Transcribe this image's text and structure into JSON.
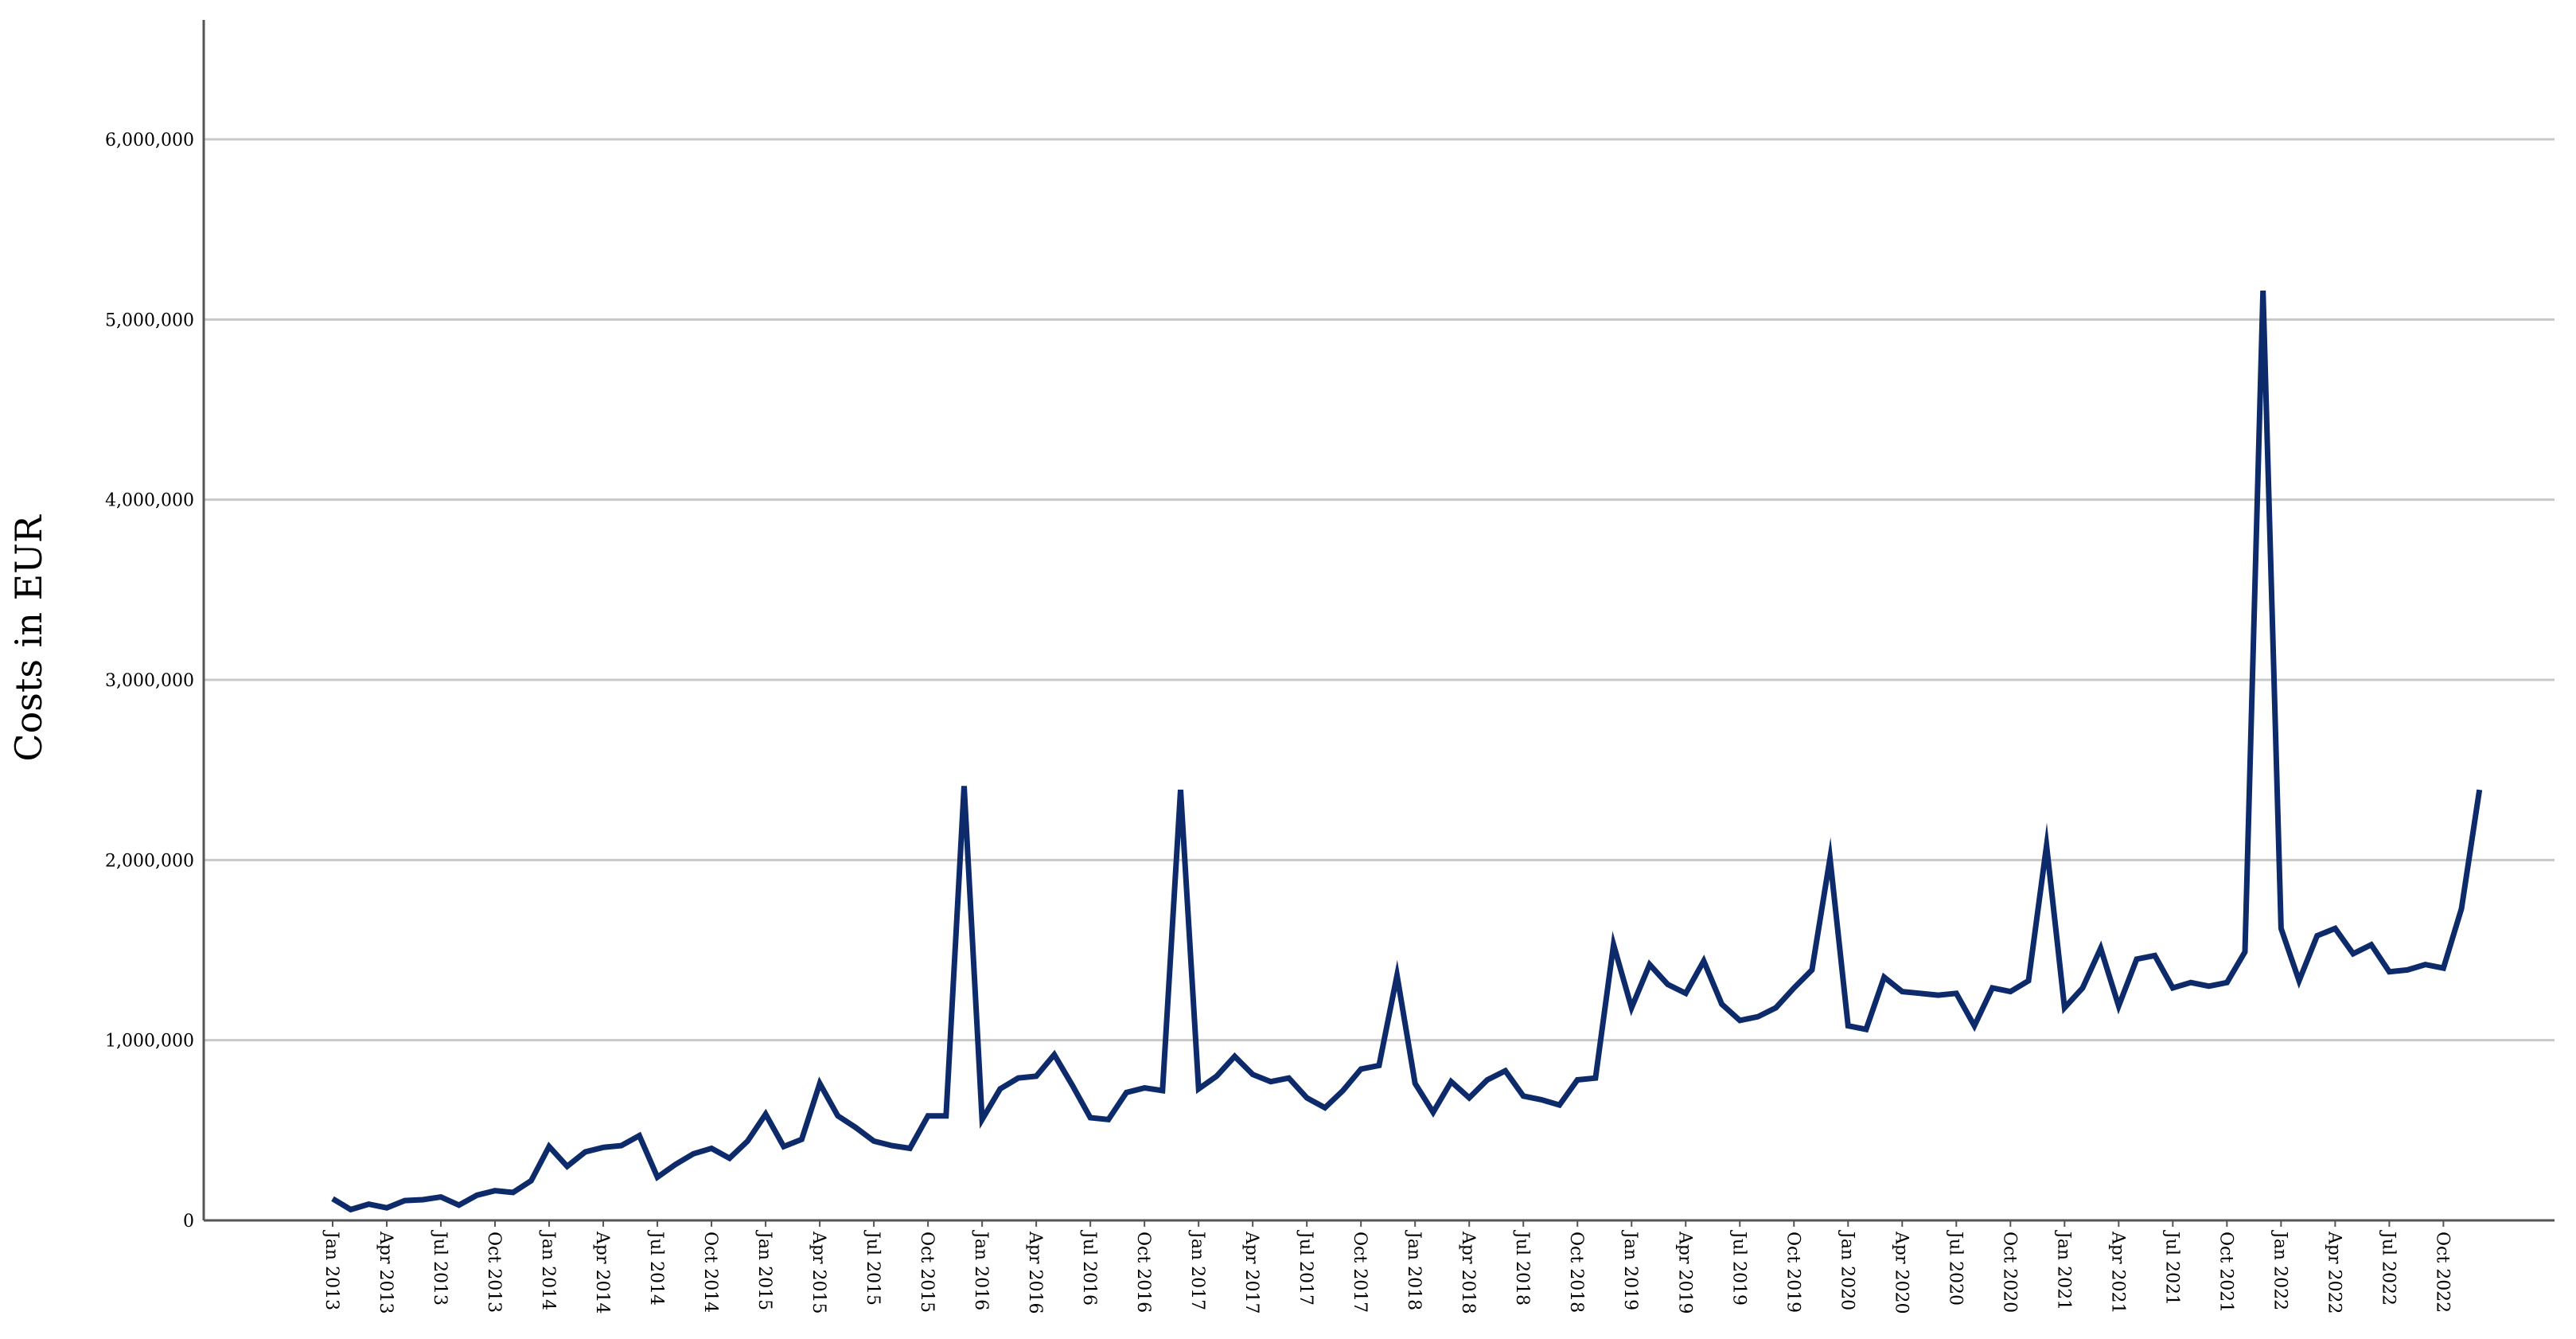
{
  "chart_data": {
    "type": "line",
    "title": "",
    "xlabel": "",
    "ylabel": "Costs in EUR",
    "ylim": [
      0,
      6500000
    ],
    "grid": true,
    "line_color": "#0d2a6b",
    "yticks": [
      {
        "value": 0,
        "label": "0"
      },
      {
        "value": 1000000,
        "label": "1,000,000"
      },
      {
        "value": 2000000,
        "label": "2,000,000"
      },
      {
        "value": 3000000,
        "label": "3,000,000"
      },
      {
        "value": 4000000,
        "label": "4,000,000"
      },
      {
        "value": 5000000,
        "label": "5,000,000"
      },
      {
        "value": 6000000,
        "label": "6,000,000"
      }
    ],
    "x_tick_labels": [
      "Jan 2013",
      "Apr 2013",
      "Jul 2013",
      "Oct 2013",
      "Jan 2014",
      "Apr 2014",
      "Jul 2014",
      "Oct 2014",
      "Jan 2015",
      "Apr 2015",
      "Jul 2015",
      "Oct 2015",
      "Jan 2016",
      "Apr 2016",
      "Jul 2016",
      "Oct 2016",
      "Jan 2017",
      "Apr 2017",
      "Jul 2017",
      "Oct 2017",
      "Jan 2018",
      "Apr 2018",
      "Jul 2018",
      "Oct 2018",
      "Jan 2019",
      "Apr 2019",
      "Jul 2019",
      "Oct 2019",
      "Jan 2020",
      "Apr 2020",
      "Jul 2020",
      "Oct 2020",
      "Jan 2021",
      "Apr 2021",
      "Jul 2021",
      "Oct 2021",
      "Jan 2022",
      "Apr 2022",
      "Jul 2022",
      "Oct 2022"
    ],
    "series": [
      {
        "x": [
          "2013-01",
          "2013-02",
          "2013-03",
          "2013-04",
          "2013-05",
          "2013-06",
          "2013-07",
          "2013-08",
          "2013-09",
          "2013-10",
          "2013-11",
          "2013-12",
          "2014-01",
          "2014-02",
          "2014-03",
          "2014-04",
          "2014-05",
          "2014-06",
          "2014-07",
          "2014-08",
          "2014-09",
          "2014-10",
          "2014-11",
          "2014-12",
          "2015-01",
          "2015-02",
          "2015-03",
          "2015-04",
          "2015-05",
          "2015-06",
          "2015-07",
          "2015-08",
          "2015-09",
          "2015-10",
          "2015-11",
          "2015-12",
          "2016-01",
          "2016-02",
          "2016-03",
          "2016-04",
          "2016-05",
          "2016-06",
          "2016-07",
          "2016-08",
          "2016-09",
          "2016-10",
          "2016-11",
          "2016-12",
          "2017-01",
          "2017-02",
          "2017-03",
          "2017-04",
          "2017-05",
          "2017-06",
          "2017-07",
          "2017-08",
          "2017-09",
          "2017-10",
          "2017-11",
          "2017-12",
          "2018-01",
          "2018-02",
          "2018-03",
          "2018-04",
          "2018-05",
          "2018-06",
          "2018-07",
          "2018-08",
          "2018-09",
          "2018-10",
          "2018-11",
          "2018-12",
          "2019-01",
          "2019-02",
          "2019-03",
          "2019-04",
          "2019-05",
          "2019-06",
          "2019-07",
          "2019-08",
          "2019-09",
          "2019-10",
          "2019-11",
          "2019-12",
          "2020-01",
          "2020-02",
          "2020-03",
          "2020-04",
          "2020-05",
          "2020-06",
          "2020-07",
          "2020-08",
          "2020-09",
          "2020-10",
          "2020-11",
          "2020-12",
          "2021-01",
          "2021-02",
          "2021-03",
          "2021-04",
          "2021-05",
          "2021-06",
          "2021-07",
          "2021-08",
          "2021-09",
          "2021-10",
          "2021-11",
          "2021-12",
          "2022-01",
          "2022-02",
          "2022-03",
          "2022-04",
          "2022-05",
          "2022-06",
          "2022-07",
          "2022-08",
          "2022-09",
          "2022-10",
          "2022-11",
          "2022-12"
        ],
        "values": [
          120000,
          60000,
          90000,
          70000,
          110000,
          115000,
          130000,
          85000,
          140000,
          165000,
          155000,
          220000,
          410000,
          300000,
          380000,
          405000,
          415000,
          470000,
          240000,
          310000,
          370000,
          400000,
          345000,
          440000,
          590000,
          410000,
          450000,
          760000,
          580000,
          515000,
          440000,
          415000,
          400000,
          580000,
          580000,
          2410000,
          560000,
          730000,
          790000,
          800000,
          920000,
          750000,
          570000,
          560000,
          710000,
          735000,
          720000,
          2390000,
          730000,
          800000,
          910000,
          810000,
          770000,
          790000,
          680000,
          625000,
          720000,
          840000,
          860000,
          1360000,
          760000,
          600000,
          770000,
          680000,
          780000,
          830000,
          690000,
          670000,
          640000,
          780000,
          790000,
          1530000,
          1180000,
          1420000,
          1310000,
          1260000,
          1440000,
          1200000,
          1110000,
          1130000,
          1180000,
          1290000,
          1390000,
          2010000,
          1080000,
          1060000,
          1350000,
          1270000,
          1260000,
          1250000,
          1260000,
          1080000,
          1290000,
          1270000,
          1330000,
          2080000,
          1180000,
          1290000,
          1510000,
          1190000,
          1450000,
          1470000,
          1290000,
          1320000,
          1300000,
          1320000,
          1490000,
          5160000,
          1620000,
          1330000,
          1580000,
          1620000,
          1480000,
          1530000,
          1380000,
          1390000,
          1420000,
          1400000,
          1730000,
          2390000
        ]
      }
    ]
  }
}
